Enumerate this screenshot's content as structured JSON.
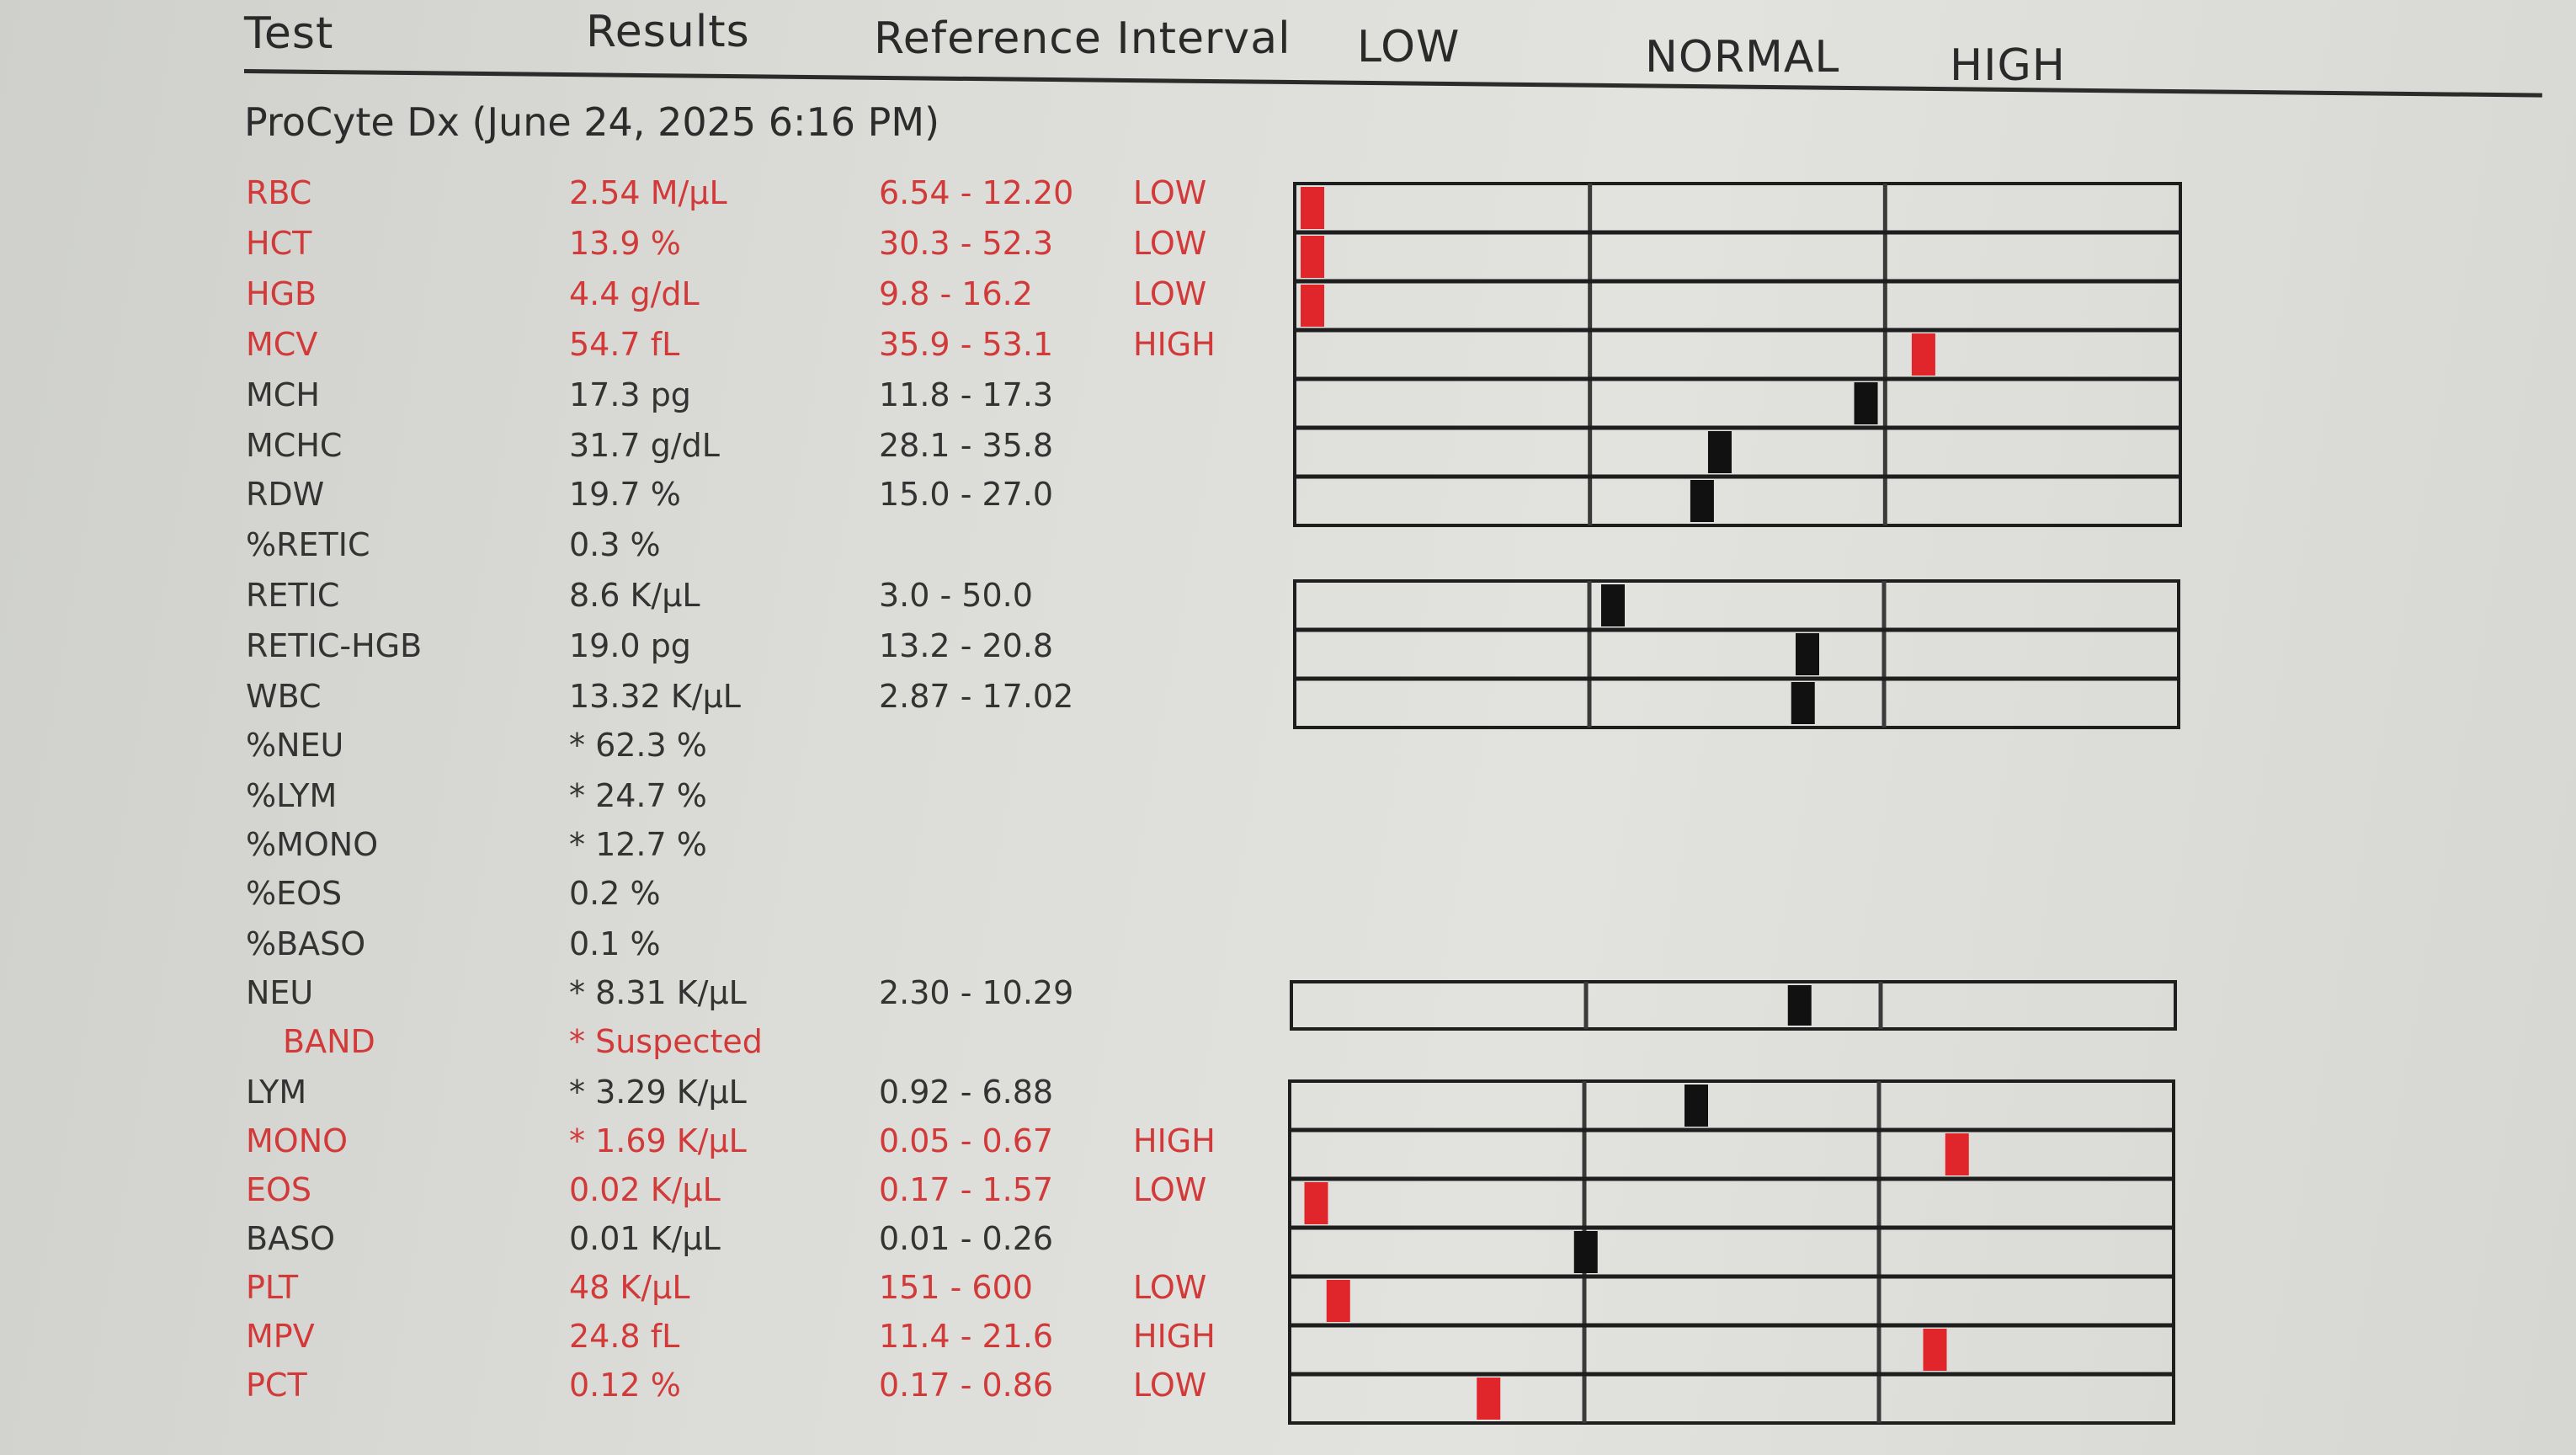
{
  "header": {
    "test": "Test",
    "results": "Results",
    "reference": "Reference Interval",
    "low": "LOW",
    "normal": "NORMAL",
    "high": "HIGH"
  },
  "subtitle": "ProCyte Dx (June 24, 2025 6:16 PM)",
  "colors": {
    "abnormal": "#d23a3a",
    "normal": "#1f1f1f",
    "bar_abnormal": "#e0262a",
    "bar_normal": "#111111"
  },
  "rows": [
    {
      "test": "RBC",
      "result": "2.54 M/µL",
      "ref": "6.54 - 12.20",
      "flag": "LOW",
      "abnormal": true,
      "pos": 0.02
    },
    {
      "test": "HCT",
      "result": "13.9 %",
      "ref": "30.3 - 52.3",
      "flag": "LOW",
      "abnormal": true,
      "pos": 0.02
    },
    {
      "test": "HGB",
      "result": "4.4 g/dL",
      "ref": "9.8 - 16.2",
      "flag": "LOW",
      "abnormal": true,
      "pos": 0.02
    },
    {
      "test": "MCV",
      "result": "54.7 fL",
      "ref": "35.9 - 53.1",
      "flag": "HIGH",
      "abnormal": true,
      "pos": 0.71
    },
    {
      "test": "MCH",
      "result": "17.3 pg",
      "ref": "11.8 - 17.3",
      "flag": "",
      "abnormal": false,
      "pos": 0.645
    },
    {
      "test": "MCHC",
      "result": "31.7 g/dL",
      "ref": "28.1 - 35.8",
      "flag": "",
      "abnormal": false,
      "pos": 0.48
    },
    {
      "test": "RDW",
      "result": "19.7 %",
      "ref": "15.0 - 27.0",
      "flag": "",
      "abnormal": false,
      "pos": 0.46
    },
    {
      "test": "%RETIC",
      "result": "0.3 %",
      "ref": "",
      "flag": "",
      "abnormal": false,
      "pos": null
    },
    {
      "test": "RETIC",
      "result": "8.6 K/µL",
      "ref": "3.0 - 50.0",
      "flag": "",
      "abnormal": false,
      "pos": 0.36
    },
    {
      "test": "RETIC-HGB",
      "result": "19.0 pg",
      "ref": "13.2 - 20.8",
      "flag": "",
      "abnormal": false,
      "pos": 0.58
    },
    {
      "test": "WBC",
      "result": "13.32 K/µL",
      "ref": "2.87 - 17.02",
      "flag": "",
      "abnormal": false,
      "pos": 0.575
    },
    {
      "test": "%NEU",
      "result": "* 62.3 %",
      "ref": "",
      "flag": "",
      "abnormal": false,
      "pos": null
    },
    {
      "test": "%LYM",
      "result": "* 24.7 %",
      "ref": "",
      "flag": "",
      "abnormal": false,
      "pos": null
    },
    {
      "test": "%MONO",
      "result": "* 12.7 %",
      "ref": "",
      "flag": "",
      "abnormal": false,
      "pos": null
    },
    {
      "test": "%EOS",
      "result": "0.2 %",
      "ref": "",
      "flag": "",
      "abnormal": false,
      "pos": null
    },
    {
      "test": "%BASO",
      "result": "0.1 %",
      "ref": "",
      "flag": "",
      "abnormal": false,
      "pos": null
    },
    {
      "test": "NEU",
      "result": "* 8.31 K/µL",
      "ref": "2.30 - 10.29",
      "flag": "",
      "abnormal": false,
      "pos": 0.575
    },
    {
      "test": "BAND",
      "result": "* Suspected",
      "ref": "",
      "flag": "",
      "abnormal": true,
      "pos": null,
      "indent": true
    },
    {
      "test": "LYM",
      "result": "* 3.29 K/µL",
      "ref": "0.92 - 6.88",
      "flag": "",
      "abnormal": false,
      "pos": 0.46
    },
    {
      "test": "MONO",
      "result": "* 1.69 K/µL",
      "ref": "0.05 - 0.67",
      "flag": "HIGH",
      "abnormal": true,
      "pos": 0.755
    },
    {
      "test": "EOS",
      "result": "0.02 K/µL",
      "ref": "0.17 - 1.57",
      "flag": "LOW",
      "abnormal": true,
      "pos": 0.03
    },
    {
      "test": "BASO",
      "result": "0.01 K/µL",
      "ref": "0.01 - 0.26",
      "flag": "",
      "abnormal": false,
      "pos": 0.335
    },
    {
      "test": "PLT",
      "result": "48 K/µL",
      "ref": "151 - 600",
      "flag": "LOW",
      "abnormal": true,
      "pos": 0.055
    },
    {
      "test": "MPV",
      "result": "24.8 fL",
      "ref": "11.4 - 21.6",
      "flag": "HIGH",
      "abnormal": true,
      "pos": 0.73
    },
    {
      "test": "PCT",
      "result": "0.12 %",
      "ref": "0.17 - 0.86",
      "flag": "LOW",
      "abnormal": true,
      "pos": 0.225
    }
  ]
}
